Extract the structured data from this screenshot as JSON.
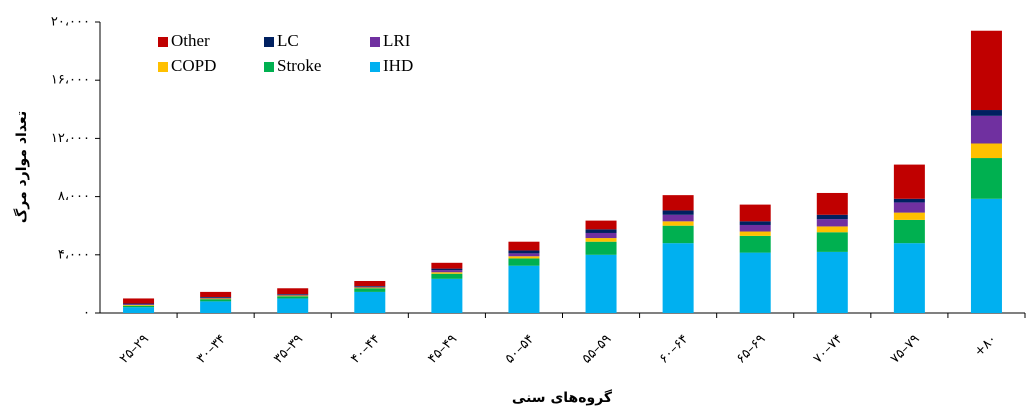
{
  "chart_data": {
    "type": "stacked_bar",
    "y_label": "تعداد موارد مرگ",
    "x_label": "گروه‌های سنی",
    "categories": [
      "۲۵–۲۹",
      "۳۰–۳۴",
      "۳۵–۳۹",
      "۴۰–۴۴",
      "۴۵–۴۹",
      "۵۰–۵۴",
      "۵۵–۵۹",
      "۶۰–۶۴",
      "۶۵–۶۹",
      "۷۰–۷۴",
      "۷۵–۷۹",
      "+۸۰"
    ],
    "series": [
      {
        "name": "Other",
        "color": "#c00000",
        "values": [
          350,
          350,
          400,
          350,
          400,
          600,
          600,
          1050,
          1150,
          1500,
          2350,
          5450
        ]
      },
      {
        "name": "LC",
        "color": "#002060",
        "values": [
          50,
          50,
          50,
          50,
          100,
          200,
          250,
          300,
          250,
          300,
          250,
          400
        ]
      },
      {
        "name": "LRI",
        "color": "#7030a0",
        "values": [
          50,
          50,
          50,
          50,
          150,
          200,
          350,
          450,
          450,
          500,
          700,
          1900
        ]
      },
      {
        "name": "COPD",
        "color": "#ffc000",
        "values": [
          50,
          50,
          50,
          50,
          100,
          150,
          250,
          300,
          300,
          400,
          500,
          1000
        ]
      },
      {
        "name": "Stroke",
        "color": "#00b050",
        "values": [
          100,
          150,
          150,
          250,
          350,
          500,
          900,
          1200,
          1150,
          1350,
          1600,
          2800
        ]
      },
      {
        "name": "IHD",
        "color": "#00b0f0",
        "values": [
          400,
          800,
          1000,
          1450,
          2350,
          3250,
          4000,
          4800,
          4150,
          4200,
          4800,
          7850
        ]
      }
    ],
    "ylim": [
      0,
      20000
    ],
    "yticks": [
      {
        "value": 0,
        "label": "۰"
      },
      {
        "value": 4000,
        "label": "۴،۰۰۰"
      },
      {
        "value": 8000,
        "label": "۸،۰۰۰"
      },
      {
        "value": 12000,
        "label": "۱۲،۰۰۰"
      },
      {
        "value": 16000,
        "label": "۱۶،۰۰۰"
      },
      {
        "value": 20000,
        "label": "۲۰،۰۰۰"
      }
    ],
    "legend": "top-left"
  }
}
